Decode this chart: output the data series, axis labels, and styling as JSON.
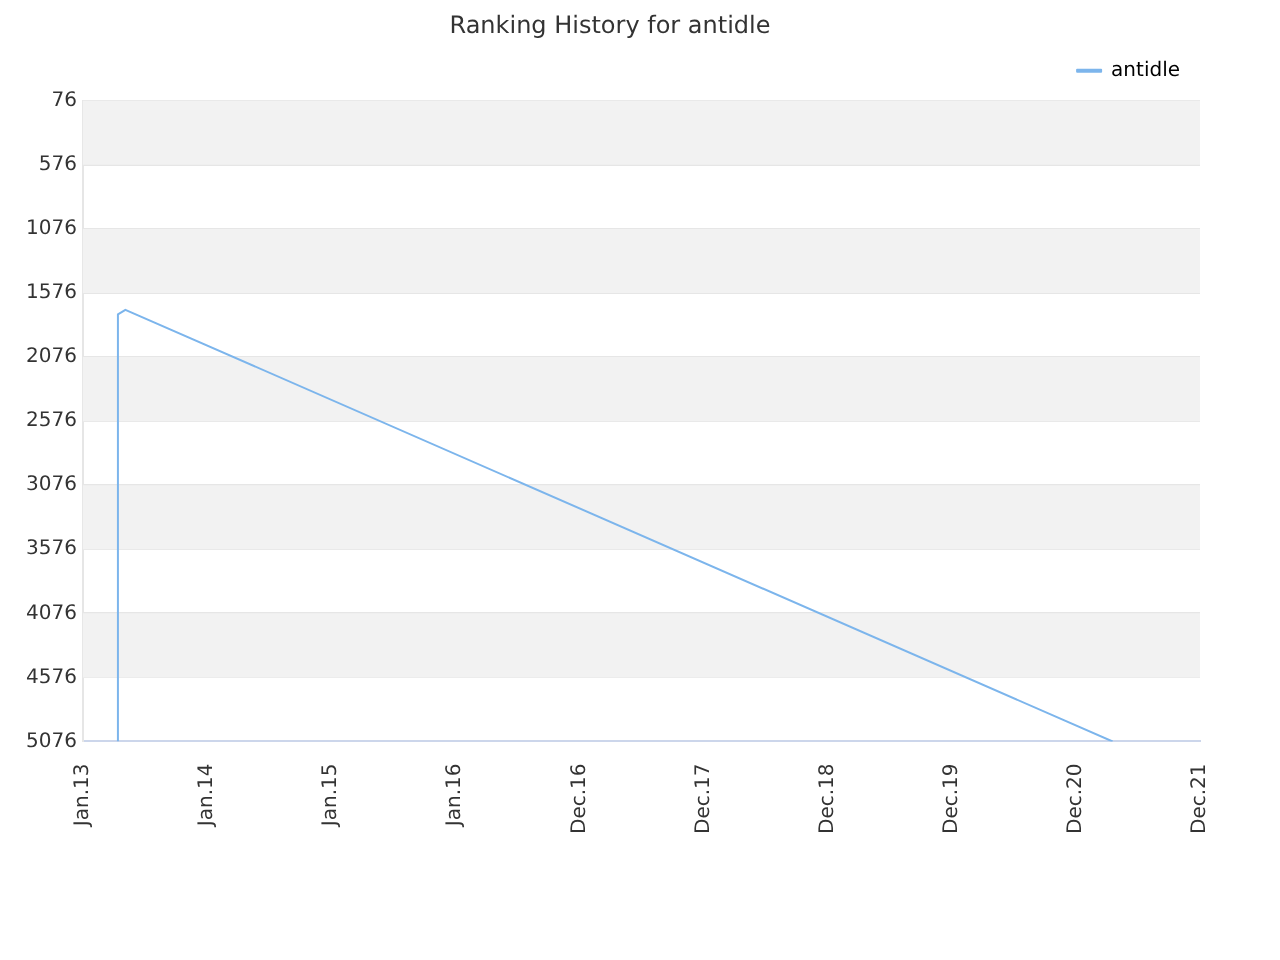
{
  "chart_data": {
    "type": "line",
    "title": "Ranking History for antidle",
    "series": [
      {
        "name": "antidle",
        "color": "#7cb5ec",
        "x": [
          "2013-04-14",
          "2013-04-14",
          "2013-05-06",
          "2021-04-17"
        ],
        "values": [
          5076,
          1743,
          1707,
          5076
        ]
      }
    ],
    "xlim": [
      "2013-01-01",
      "2021-12-30"
    ],
    "xticks": [
      {
        "value": "2013-01-01",
        "label": "Jan.13"
      },
      {
        "value": "2014-01-01",
        "label": "Jan.14"
      },
      {
        "value": "2015-01-01",
        "label": "Jan.15"
      },
      {
        "value": "2016-01-01",
        "label": "Jan.16"
      },
      {
        "value": "2016-12-31",
        "label": "Dec.16"
      },
      {
        "value": "2017-12-31",
        "label": "Dec.17"
      },
      {
        "value": "2018-12-31",
        "label": "Dec.18"
      },
      {
        "value": "2019-12-31",
        "label": "Dec.19"
      },
      {
        "value": "2020-12-30",
        "label": "Dec.20"
      },
      {
        "value": "2021-12-30",
        "label": "Dec.21"
      }
    ],
    "ylim": [
      5076,
      76
    ],
    "yticks": [
      76,
      576,
      1076,
      1576,
      2076,
      2576,
      3076,
      3576,
      4076,
      4576,
      5076
    ],
    "grid": "y",
    "legend": "top right",
    "marker": "none",
    "line_style": "solid"
  }
}
